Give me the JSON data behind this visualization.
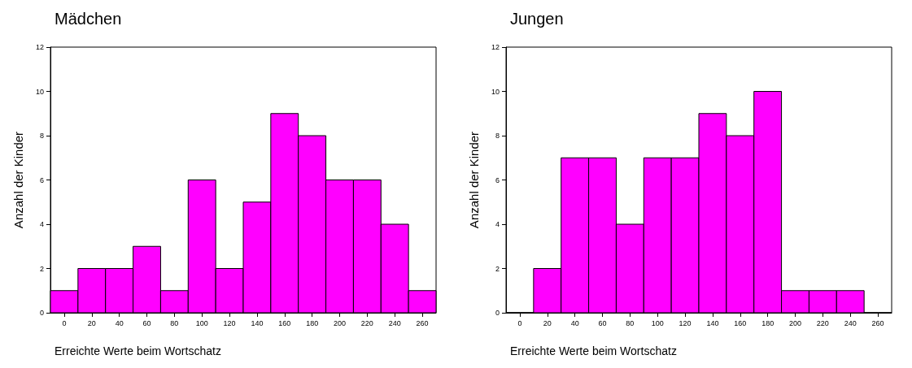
{
  "chart_data": [
    {
      "type": "histogram",
      "title": "Mädchen",
      "xlabel": "Erreichte Werte beim Wortschatz",
      "ylabel": "Anzahl der Kinder",
      "bins": [
        -10,
        10,
        30,
        50,
        70,
        90,
        110,
        130,
        150,
        170,
        190,
        210,
        230,
        250,
        270
      ],
      "values": [
        1,
        2,
        2,
        3,
        1,
        6,
        2,
        5,
        9,
        8,
        6,
        6,
        4,
        1
      ],
      "color": "#ff00ff",
      "xlim": [
        -10,
        270
      ],
      "xticks": [
        0,
        20,
        40,
        60,
        80,
        100,
        120,
        140,
        160,
        180,
        200,
        220,
        240,
        260
      ],
      "ylim": [
        0,
        12
      ],
      "yticks": [
        0,
        2,
        4,
        6,
        8,
        10,
        12
      ],
      "grid": false
    },
    {
      "type": "histogram",
      "title": "Jungen",
      "xlabel": "Erreichte Werte beim Wortschatz",
      "ylabel": "Anzahl der Kinder",
      "bins": [
        -10,
        10,
        30,
        50,
        70,
        90,
        110,
        130,
        150,
        170,
        190,
        210,
        230,
        250,
        270
      ],
      "values": [
        0,
        2,
        7,
        7,
        4,
        7,
        7,
        9,
        8,
        10,
        1,
        1,
        1,
        0
      ],
      "color": "#ff00ff",
      "xlim": [
        -10,
        270
      ],
      "xticks": [
        0,
        20,
        40,
        60,
        80,
        100,
        120,
        140,
        160,
        180,
        200,
        220,
        240,
        260
      ],
      "ylim": [
        0,
        12
      ],
      "yticks": [
        0,
        2,
        4,
        6,
        8,
        10,
        12
      ],
      "grid": false
    }
  ]
}
